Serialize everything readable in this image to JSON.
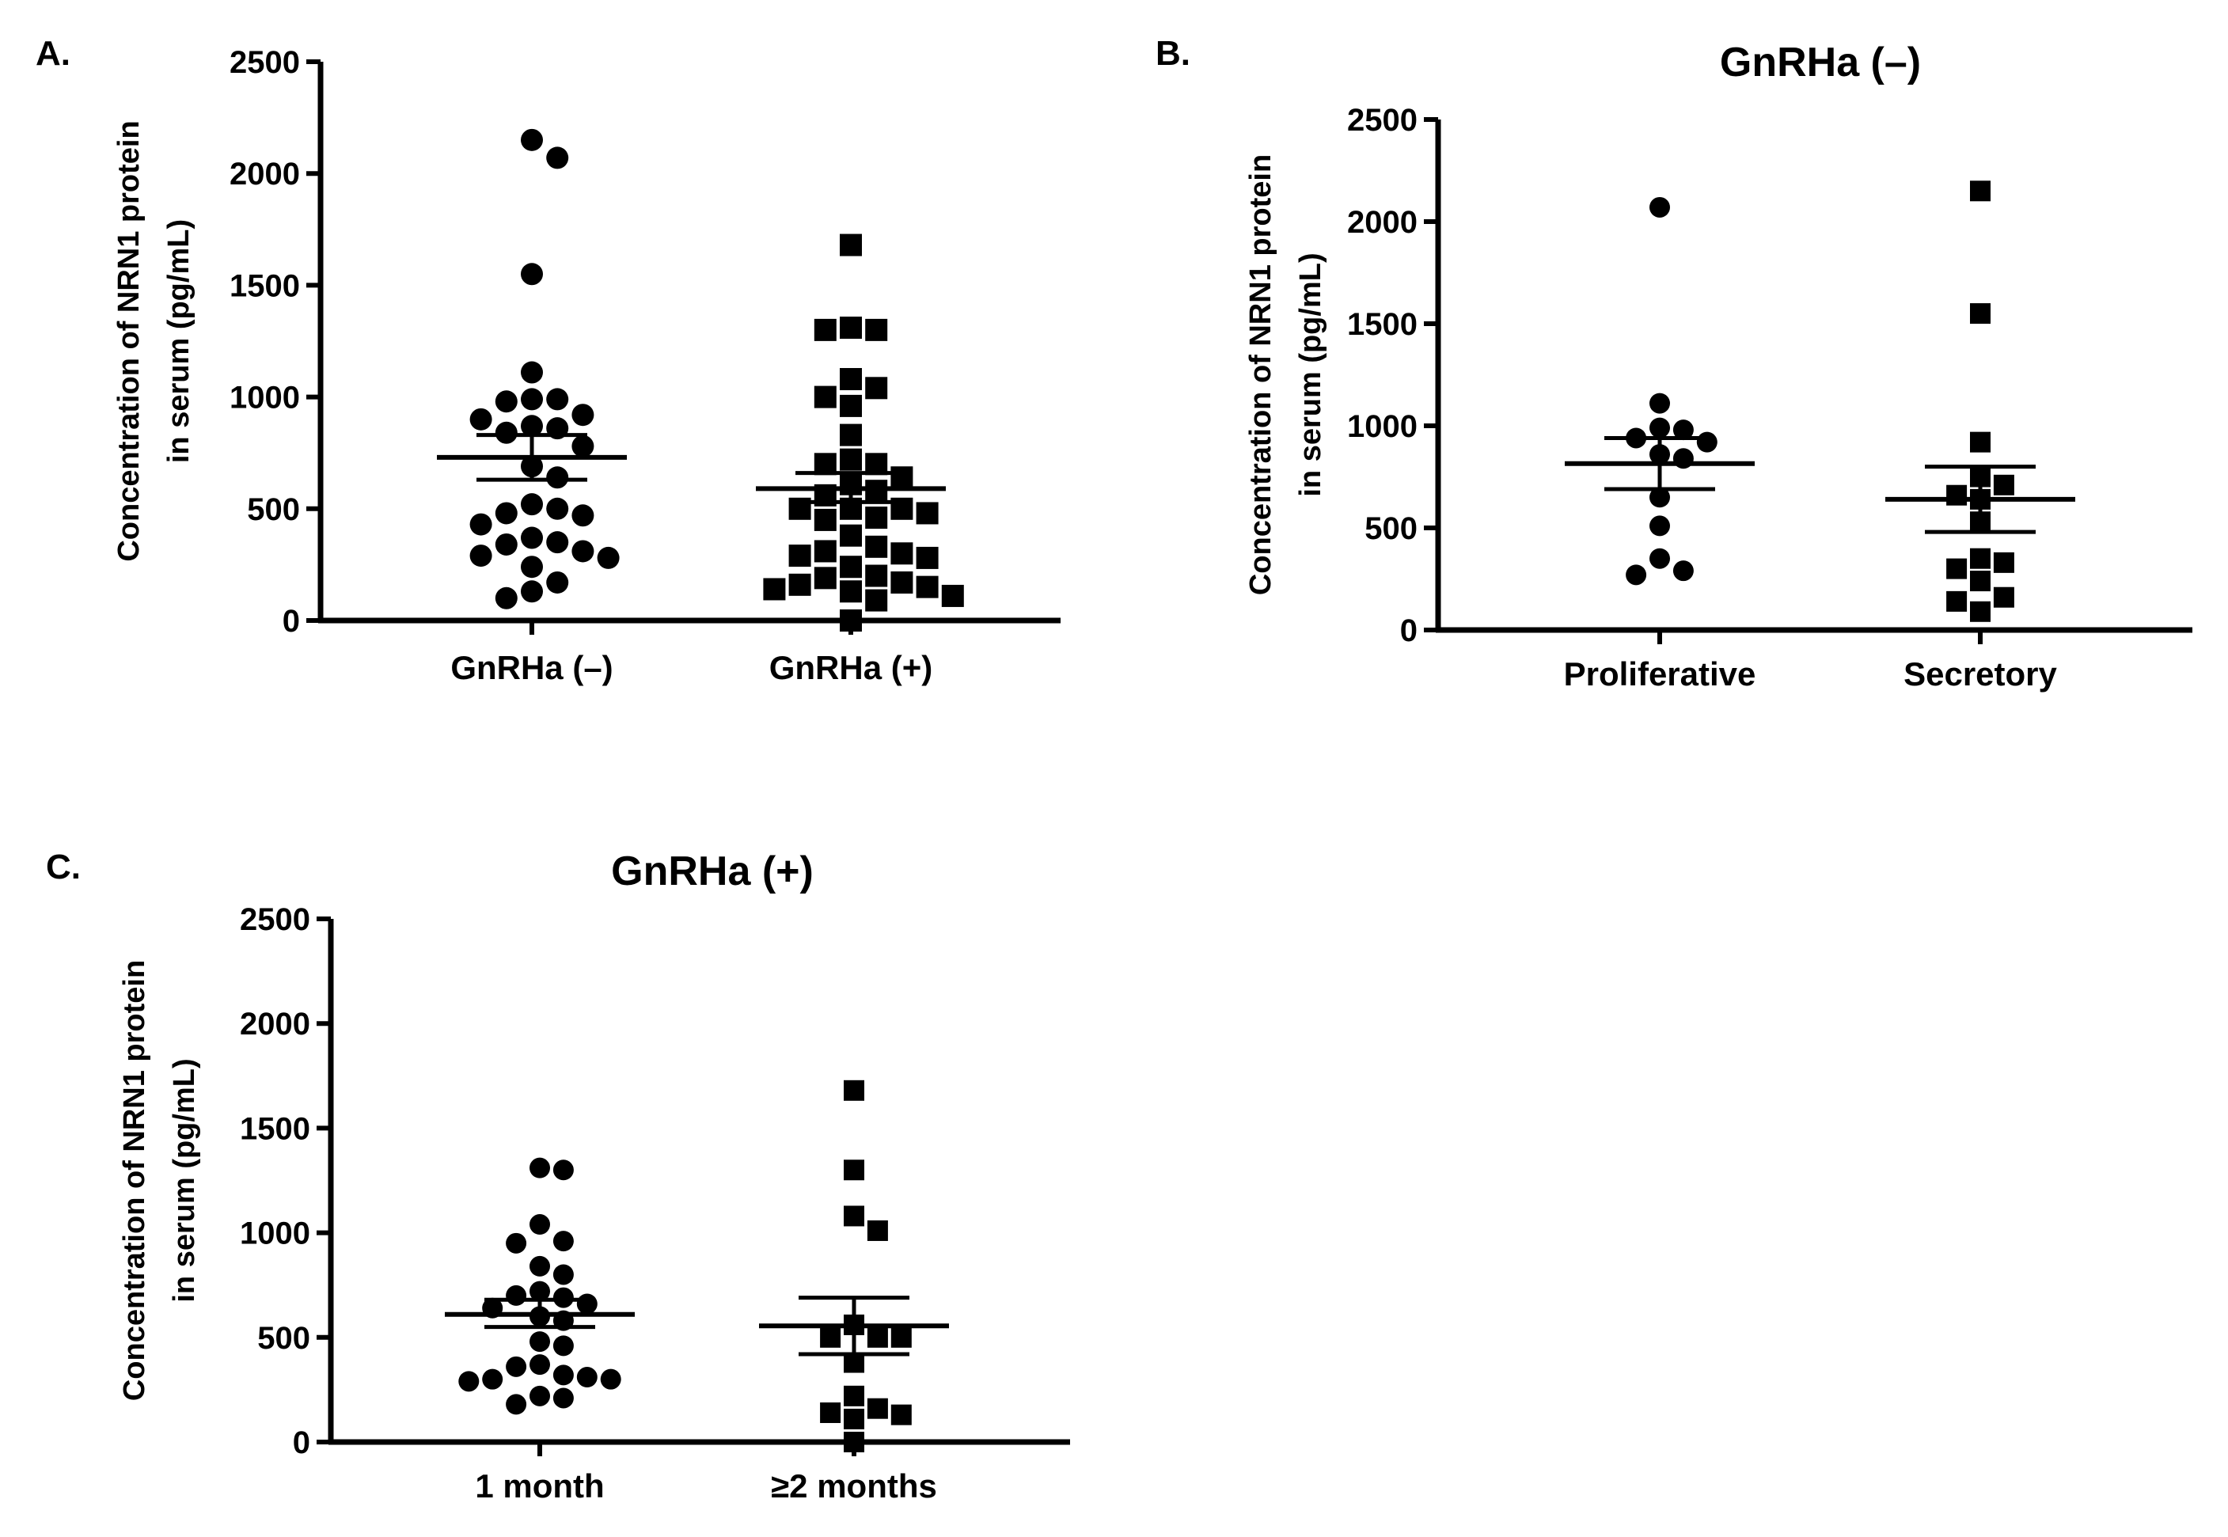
{
  "chart_data": [
    {
      "panel": "A.",
      "title": "",
      "type": "scatter",
      "ylabel_lines": [
        "Concentration of NRN1 protein",
        "in serum (pg/mL)"
      ],
      "ylim": [
        0,
        2500
      ],
      "yticks": [
        "0",
        "500",
        "1000",
        "1500",
        "2000",
        "2500"
      ],
      "categories": [
        "GnRHa (–)",
        "GnRHa (+)"
      ],
      "series": [
        {
          "name": "GnRHa (–)",
          "marker": "circle",
          "values": [
            2150,
            2070,
            1550,
            1110,
            990,
            990,
            980,
            920,
            900,
            870,
            860,
            840,
            780,
            690,
            640,
            520,
            500,
            480,
            470,
            430,
            370,
            350,
            340,
            310,
            290,
            280,
            240,
            170,
            130,
            100
          ],
          "mean": 730,
          "sem_low": 630,
          "sem_high": 830
        },
        {
          "name": "GnRHa (+)",
          "marker": "square",
          "values": [
            1680,
            1310,
            1300,
            1300,
            1080,
            1040,
            1000,
            960,
            830,
            720,
            700,
            700,
            640,
            610,
            580,
            560,
            500,
            500,
            500,
            480,
            460,
            450,
            380,
            330,
            310,
            300,
            290,
            280,
            240,
            200,
            190,
            170,
            160,
            150,
            140,
            130,
            110,
            90,
            0
          ],
          "mean": 590,
          "sem_low": 530,
          "sem_high": 660
        }
      ]
    },
    {
      "panel": "B.",
      "title": "GnRHa (–)",
      "type": "scatter",
      "ylabel_lines": [
        "Concentration of NRN1 protein",
        "in serum (pg/mL)"
      ],
      "ylim": [
        0,
        2500
      ],
      "yticks": [
        "0",
        "500",
        "1000",
        "1500",
        "2000",
        "2500"
      ],
      "categories": [
        "Proliferative",
        "Secretory"
      ],
      "series": [
        {
          "name": "Proliferative",
          "marker": "circle",
          "values": [
            2070,
            1110,
            990,
            980,
            940,
            920,
            860,
            840,
            650,
            510,
            350,
            290,
            270
          ],
          "mean": 815,
          "sem_low": 690,
          "sem_high": 940
        },
        {
          "name": "Secretory",
          "marker": "square",
          "values": [
            2150,
            1550,
            920,
            750,
            710,
            660,
            640,
            530,
            350,
            330,
            300,
            240,
            160,
            140,
            90
          ],
          "mean": 640,
          "sem_low": 480,
          "sem_high": 800
        }
      ]
    },
    {
      "panel": "C.",
      "title": "GnRHa (+)",
      "type": "scatter",
      "ylabel_lines": [
        "Concentration of NRN1 protein",
        "in serum (pg/mL)"
      ],
      "ylim": [
        0,
        2500
      ],
      "yticks": [
        "0",
        "500",
        "1000",
        "1500",
        "2000",
        "2500"
      ],
      "categories": [
        "1 month",
        "≥2 months"
      ],
      "series": [
        {
          "name": "1 month",
          "marker": "circle",
          "values": [
            1310,
            1300,
            1040,
            960,
            950,
            840,
            800,
            720,
            700,
            690,
            660,
            640,
            600,
            580,
            480,
            460,
            370,
            360,
            320,
            310,
            300,
            300,
            290,
            220,
            210,
            180
          ],
          "mean": 610,
          "sem_low": 550,
          "sem_high": 680
        },
        {
          "name": "≥2 months",
          "marker": "square",
          "values": [
            1680,
            1300,
            1080,
            1010,
            560,
            500,
            500,
            500,
            380,
            220,
            160,
            140,
            130,
            110,
            0
          ],
          "mean": 555,
          "sem_low": 420,
          "sem_high": 690
        }
      ]
    }
  ]
}
